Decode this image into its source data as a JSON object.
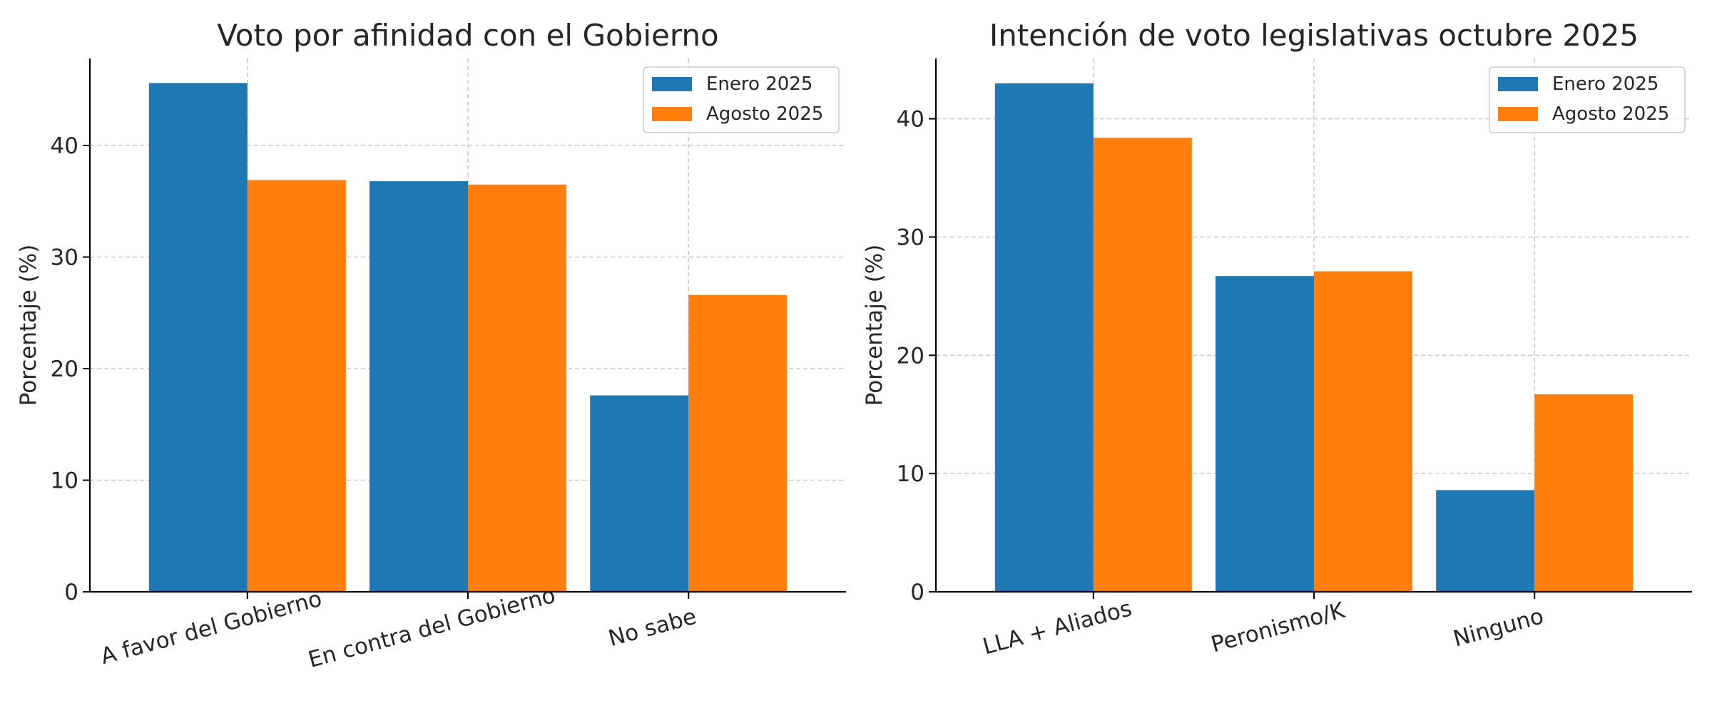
{
  "chart_data": [
    {
      "type": "bar",
      "title": "Voto por afinidad con el Gobierno",
      "ylabel": "Porcentaje (%)",
      "xlabel": "",
      "categories": [
        "A favor del Gobierno",
        "En contra del Gobierno",
        "No sabe"
      ],
      "series": [
        {
          "name": "Enero 2025",
          "values": [
            45.6,
            36.8,
            17.6
          ],
          "color": "#1f77b4"
        },
        {
          "name": "Agosto 2025",
          "values": [
            36.9,
            36.5,
            26.6
          ],
          "color": "#ff7f0e"
        }
      ],
      "ylim": [
        0,
        47.8
      ],
      "yticks": [
        0,
        10,
        20,
        30,
        40
      ],
      "grid": true,
      "legend": "top-right"
    },
    {
      "type": "bar",
      "title": "Intención de voto legislativas octubre 2025",
      "ylabel": "Porcentaje (%)",
      "xlabel": "",
      "categories": [
        "LLA + Aliados",
        "Peronismo/K",
        "Ninguno"
      ],
      "series": [
        {
          "name": "Enero 2025",
          "values": [
            43.0,
            26.7,
            8.6
          ],
          "color": "#1f77b4"
        },
        {
          "name": "Agosto 2025",
          "values": [
            38.4,
            27.1,
            16.7
          ],
          "color": "#ff7f0e"
        }
      ],
      "ylim": [
        0,
        45.1
      ],
      "yticks": [
        0,
        10,
        20,
        30,
        40
      ],
      "grid": true,
      "legend": "top-right"
    }
  ]
}
